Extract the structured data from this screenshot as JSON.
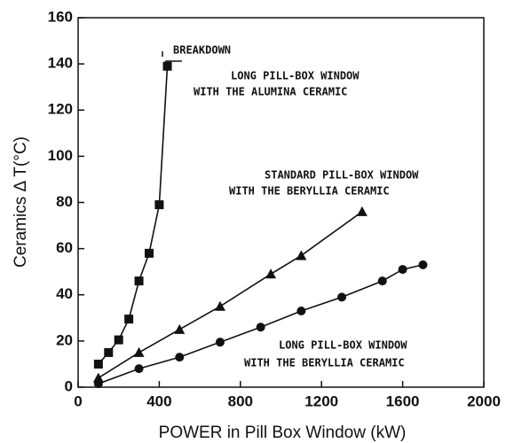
{
  "chart_data": {
    "type": "line",
    "xlabel": "POWER in Pill Box Window    (kW)",
    "ylabel": "Ceramics Δ T(°C)",
    "xlim": [
      0,
      2000
    ],
    "xticks": [
      0,
      400,
      800,
      1200,
      1600,
      2000
    ],
    "ylim": [
      0,
      160
    ],
    "yticks": [
      0,
      20,
      40,
      60,
      80,
      100,
      120,
      140,
      160
    ],
    "annotations": [
      "BREAKDOWN",
      "LONG PILL-BOX WINDOW",
      "WITH THE ALUMINA CERAMIC",
      "STANDARD PILL-BOX WINDOW",
      "WITH THE BERYLLIA CERAMIC",
      "LONG PILL-BOX WINDOW",
      "WITH THE BERYLLIA CERAMIC"
    ],
    "series": [
      {
        "color": "#111111",
        "marker": "square",
        "x": [
          100,
          150,
          200,
          250,
          300,
          350,
          400,
          440
        ],
        "values": [
          10,
          15,
          20.5,
          29.5,
          46,
          58,
          79,
          139
        ]
      },
      {
        "color": "#111111",
        "marker": "triangle",
        "x": [
          100,
          300,
          500,
          700,
          950,
          1100,
          1400
        ],
        "values": [
          4,
          15,
          25,
          35,
          49,
          57,
          76
        ]
      },
      {
        "color": "#111111",
        "marker": "circle",
        "x": [
          100,
          300,
          500,
          700,
          900,
          1100,
          1300,
          1500,
          1600,
          1700
        ],
        "values": [
          1.5,
          8,
          13,
          19.5,
          26,
          33,
          39,
          46,
          51,
          53
        ]
      }
    ]
  }
}
